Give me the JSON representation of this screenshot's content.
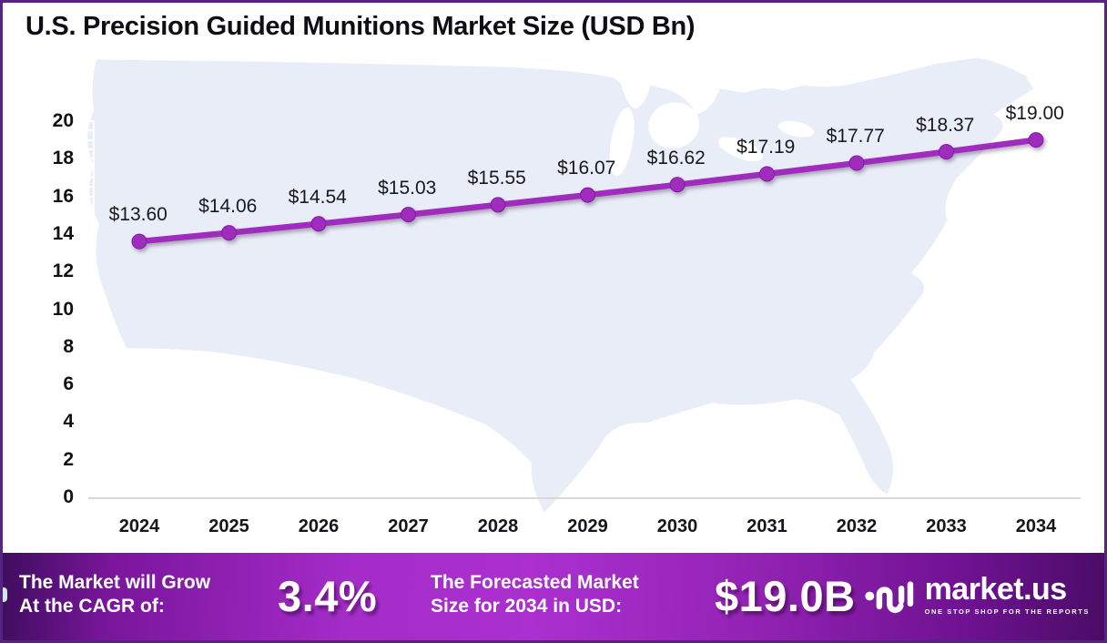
{
  "title": "U.S. Precision Guided Munitions Market Size (USD Bn)",
  "chart_data": {
    "type": "line",
    "title": "U.S. Precision Guided Munitions Market Size (USD Bn)",
    "x": [
      2024,
      2025,
      2026,
      2027,
      2028,
      2029,
      2030,
      2031,
      2032,
      2033,
      2034
    ],
    "series": [
      {
        "name": "U.S. Precision Guided Munitions Market Size (USD Bn)",
        "values": [
          13.6,
          14.06,
          14.54,
          15.03,
          15.55,
          16.07,
          16.62,
          17.19,
          17.77,
          18.37,
          19.0
        ],
        "point_labels": [
          "$13.60",
          "$14.06",
          "$14.54",
          "$15.03",
          "$15.55",
          "$16.07",
          "$16.62",
          "$17.19",
          "$17.77",
          "$18.37",
          "$19.00"
        ],
        "color": "#a02cbe"
      }
    ],
    "ylim": [
      0,
      20
    ],
    "ytick_step": 2,
    "xlabel": "",
    "ylabel": "",
    "grid": false,
    "legend": "none",
    "background": "US map silhouette"
  },
  "footer": {
    "cagr_label_line1": "The Market will Grow",
    "cagr_label_line2": "At the CAGR of:",
    "cagr_value": "3.4%",
    "forecast_label_line1": "The Forecasted Market",
    "forecast_label_line2": "Size for 2034 in USD:",
    "forecast_value": "$19.0B",
    "brand_name": "market.us",
    "brand_tagline": "ONE STOP SHOP FOR THE REPORTS"
  },
  "colors": {
    "line": "#a02cbe",
    "marker": "#9c27b5",
    "map_fill": "#e9edf8",
    "border": "#562383",
    "axis_line": "#d8d8d8",
    "banner_bright": "#a52cc9",
    "banner_dark": "#4a0c66",
    "text": "#111111"
  }
}
